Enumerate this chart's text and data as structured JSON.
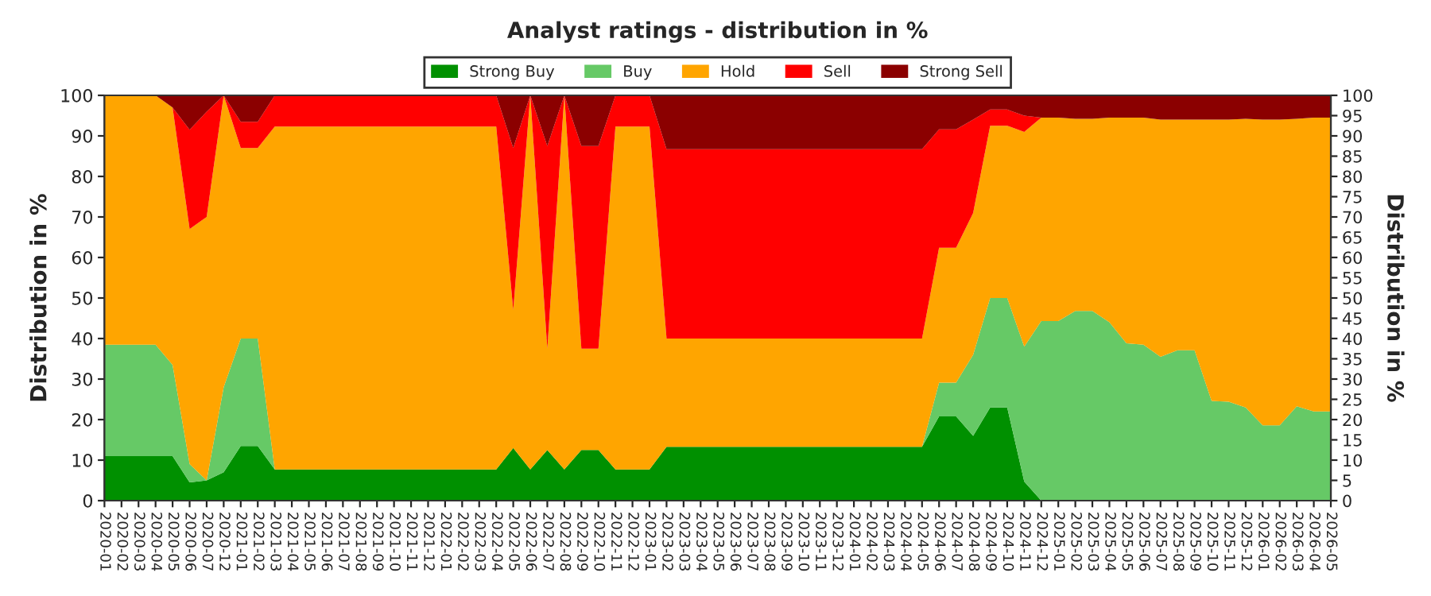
{
  "chart_data": {
    "type": "area",
    "stacked": true,
    "title": "Analyst ratings - distribution in %",
    "ylabel": "Distribution in %",
    "y2label": "Distribution in %",
    "categories": [
      "2020-01",
      "2020-02",
      "2020-03",
      "2020-04",
      "2020-05",
      "2020-06",
      "2020-07",
      "2020-12",
      "2021-01",
      "2021-02",
      "2021-03",
      "2021-04",
      "2021-05",
      "2021-06",
      "2021-07",
      "2021-08",
      "2021-09",
      "2021-10",
      "2021-11",
      "2021-12",
      "2022-01",
      "2022-02",
      "2022-03",
      "2022-04",
      "2022-05",
      "2022-06",
      "2022-07",
      "2022-08",
      "2022-09",
      "2022-10",
      "2022-11",
      "2022-12",
      "2023-01",
      "2023-02",
      "2023-03",
      "2023-04",
      "2023-05",
      "2023-06",
      "2023-07",
      "2023-08",
      "2023-09",
      "2023-10",
      "2023-11",
      "2023-12",
      "2024-01",
      "2024-02",
      "2024-03",
      "2024-04",
      "2024-05",
      "2024-06",
      "2024-07",
      "2024-08",
      "2024-09",
      "2024-10",
      "2024-11",
      "2024-12",
      "2025-01",
      "2025-02",
      "2025-03",
      "2025-04",
      "2025-05",
      "2025-06",
      "2025-07",
      "2025-08",
      "2025-09",
      "2025-10",
      "2025-11",
      "2025-12",
      "2026-01",
      "2026-02",
      "2026-03",
      "2026-04",
      "2026-05"
    ],
    "series": [
      {
        "name": "Strong Buy",
        "color": "#009000",
        "values": [
          11,
          11,
          11,
          11,
          11,
          4.5,
          5,
          7,
          13.5,
          13.5,
          7.7,
          7.7,
          7.7,
          7.7,
          7.7,
          7.7,
          7.7,
          7.7,
          7.7,
          7.7,
          7.7,
          7.7,
          7.7,
          7.7,
          13,
          7.7,
          12.5,
          7.7,
          12.5,
          12.5,
          7.7,
          7.7,
          7.7,
          13.3,
          13.3,
          13.3,
          13.3,
          13.3,
          13.3,
          13.3,
          13.3,
          13.3,
          13.3,
          13.3,
          13.3,
          13.3,
          13.3,
          13.3,
          13.3,
          20.8,
          20.8,
          16,
          23,
          23,
          4.7,
          0,
          0,
          0,
          0,
          0,
          0,
          0,
          0,
          0,
          0,
          0,
          0,
          0,
          0,
          0,
          0,
          0,
          0
        ]
      },
      {
        "name": "Buy",
        "color": "#66c966",
        "values": [
          27.5,
          27.5,
          27.5,
          27.5,
          22.5,
          4.5,
          0,
          21,
          26.5,
          26.5,
          0,
          0,
          0,
          0,
          0,
          0,
          0,
          0,
          0,
          0,
          0,
          0,
          0,
          0,
          0,
          0,
          0,
          0,
          0,
          0,
          0,
          0,
          0,
          0,
          0,
          0,
          0,
          0,
          0,
          0,
          0,
          0,
          0,
          0,
          0,
          0,
          0,
          0,
          0,
          8.3,
          8.3,
          20,
          27,
          27,
          33.3,
          44.3,
          44.3,
          46.8,
          46.8,
          44,
          38.8,
          38.5,
          35.5,
          37.1,
          37.1,
          24.6,
          24.4,
          23,
          18.6,
          18.6,
          23.3,
          22,
          22
        ]
      },
      {
        "name": "Hold",
        "color": "#ffa500",
        "values": [
          61.5,
          61.5,
          61.5,
          61.5,
          63.5,
          58,
          65,
          72,
          47,
          47,
          84.6,
          84.6,
          84.6,
          84.6,
          84.6,
          84.6,
          84.6,
          84.6,
          84.6,
          84.6,
          84.6,
          84.6,
          84.6,
          84.6,
          34,
          92.3,
          25,
          92.3,
          25,
          25,
          84.6,
          84.6,
          84.6,
          26.7,
          26.7,
          26.7,
          26.7,
          26.7,
          26.7,
          26.7,
          26.7,
          26.7,
          26.7,
          26.7,
          26.7,
          26.7,
          26.7,
          26.7,
          26.7,
          33.3,
          33.3,
          35,
          42.5,
          42.5,
          53,
          50.2,
          50.2,
          47.4,
          47.4,
          50.5,
          55.7,
          56,
          58.5,
          56.9,
          56.9,
          69.4,
          69.6,
          71.2,
          75.4,
          75.4,
          70.9,
          72.5,
          72.5
        ]
      },
      {
        "name": "Sell",
        "color": "#ff0000",
        "values": [
          0,
          0,
          0,
          0,
          0,
          24.5,
          26,
          0,
          6.5,
          6.5,
          7.7,
          7.7,
          7.7,
          7.7,
          7.7,
          7.7,
          7.7,
          7.7,
          7.7,
          7.7,
          7.7,
          7.7,
          7.7,
          7.7,
          40,
          0,
          50,
          0,
          50,
          50,
          7.7,
          7.7,
          7.7,
          46.7,
          46.7,
          46.7,
          46.7,
          46.7,
          46.7,
          46.7,
          46.7,
          46.7,
          46.7,
          46.7,
          46.7,
          46.7,
          46.7,
          46.7,
          46.7,
          29.2,
          29.2,
          23,
          4,
          4,
          4,
          0,
          0,
          0,
          0,
          0,
          0,
          0,
          0,
          0,
          0,
          0,
          0,
          0,
          0,
          0,
          0,
          0,
          0
        ]
      },
      {
        "name": "Strong Sell",
        "color": "#8b0000",
        "values": [
          0,
          0,
          0,
          0,
          3,
          8.5,
          4,
          0,
          6.5,
          6.5,
          0,
          0,
          0,
          0,
          0,
          0,
          0,
          0,
          0,
          0,
          0,
          0,
          0,
          0,
          13,
          0,
          12.5,
          0,
          12.5,
          12.5,
          0,
          0,
          0,
          13.3,
          13.3,
          13.3,
          13.3,
          13.3,
          13.3,
          13.3,
          13.3,
          13.3,
          13.3,
          13.3,
          13.3,
          13.3,
          13.3,
          13.3,
          13.3,
          8.4,
          8.4,
          6,
          3.5,
          3.5,
          5,
          5.5,
          5.5,
          5.8,
          5.8,
          5.5,
          5.5,
          5.5,
          6,
          6,
          6,
          6,
          6,
          5.8,
          6,
          6,
          5.8,
          5.5,
          5.5
        ]
      }
    ],
    "ylim": [
      0,
      100
    ],
    "yticks": [
      0,
      10,
      20,
      30,
      40,
      50,
      60,
      70,
      80,
      90,
      100
    ],
    "y2lim": [
      0,
      100
    ],
    "y2ticks": [
      0,
      5,
      10,
      15,
      20,
      25,
      30,
      35,
      40,
      45,
      50,
      55,
      60,
      65,
      70,
      75,
      80,
      85,
      90,
      95,
      100
    ],
    "grid": "y",
    "legend": "top"
  }
}
